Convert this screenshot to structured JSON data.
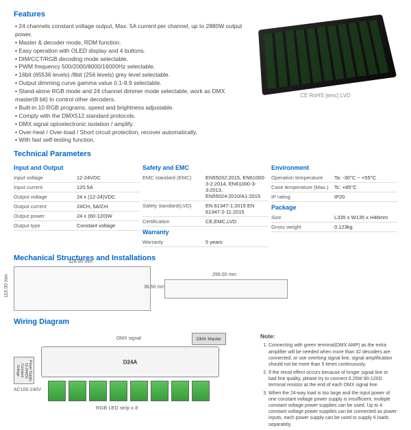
{
  "features": {
    "title": "Features",
    "items": [
      "24 channels constant voltage output, Max. 5A current per channel, up to 2880W output power.",
      "Master & decoder mode, RDM function.",
      "Easy operation with OLED display and 4 buttons.",
      "DIM/CCT/RGB decoding mode selectable.",
      "PWM frequency 500/2000/8000/16000Hz selectable.",
      "16bit (65536 levels) /8bit (256 levels) grey level selectable.",
      "Output dimming curve gamma value 0.1-9.9 selectable.",
      "Stand-alone RGB mode and 24 channel dimmer mode selectable, work as DMX master(8 bit) to control other decoders.",
      "Built-in 10 RGB programs, speed and brightness adjustable.",
      "Comply with the DMX512 standard protocols.",
      "DMX signal optoelectronic isolation / amplify.",
      "Over-heat / Over-load / Short circuit protection, recover automatically.",
      "With fast self-testing function."
    ]
  },
  "cert_text": "CE RoHS  [emc]  LVD",
  "tech": {
    "title": "Technical Parameters",
    "cols": [
      {
        "title": "Input and Output",
        "rows": [
          [
            "Input voltage",
            "12-24VDC"
          ],
          [
            "Input current",
            "120.5A"
          ],
          [
            "Output voltage",
            "24 x (12-24)VDC"
          ],
          [
            "Output current",
            "24CH, 5A/CH"
          ],
          [
            "Output power",
            "24 x (60-120)W"
          ],
          [
            "Output type",
            "Constant voltage"
          ]
        ]
      },
      {
        "title": "Safety and EMC",
        "rows": [
          [
            "EMC standard (EMC)",
            "EN55032:2015, EN61000-3-2:2014, EN61000-3-3:2013, EN55024:2010/A1:2015"
          ],
          [
            "Safety standard(LVD)",
            "EN 61347-1:2015 EN 61347-2-11:2015"
          ],
          [
            "Certification",
            "CE,EMC,LVD"
          ]
        ],
        "sub": {
          "title": "Warranty",
          "rows": [
            [
              "Warranty",
              "5 years"
            ]
          ]
        }
      },
      {
        "title": "Environment",
        "rows": [
          [
            "Operation temperature",
            "Ta: -30°C ~ +55°C"
          ],
          [
            "Case temperature (Max.)",
            "Tc: +85°C"
          ],
          [
            "IP rating",
            "IP20"
          ]
        ],
        "sub": {
          "title": "Package",
          "rows": [
            [
              "Size",
              "L335 x W135 x H46mm"
            ],
            [
              "Gross weight",
              "0.123kg"
            ]
          ]
        }
      }
    ]
  },
  "mech": {
    "title": "Mechanical Structures and Installations",
    "dims": {
      "w1": "324.00 mm",
      "h1": "116.00 mm",
      "w2": "299.00 mm",
      "h2": "38.50 mm"
    }
  },
  "wiring": {
    "title": "Wiring Diagram",
    "decoder_label": "D24A",
    "dmx_signal": "DMX signal",
    "dmx_master": "DMX Master",
    "power": "Power Supply 12-24VDC Constant Voltage",
    "ac": "AC100-240V",
    "strip_label": "RGB LED strip x 8"
  },
  "notes": {
    "title": "Note:",
    "items": [
      "Connecting with green terminal(DMX AMP) as the extra amplifier will be needed when more than 32 decoders are connected, or use overlong signal line, signal amplification should not be more than 5 times continuously.",
      "If the recoil effect occurs because of longer signal line or bad line quality, please try to connect 0.25W 90-120Ω terminal resistor at the end of each DMX signal line.",
      "When the 24-way load is too large and the input power of one constant voltage power supply is insufficient, multiple constant voltage power supplies can be used. Up to 4 constant voltage power supplies can be connected as power inputs, each power supply can be used to supply 6 loads separately."
    ]
  }
}
